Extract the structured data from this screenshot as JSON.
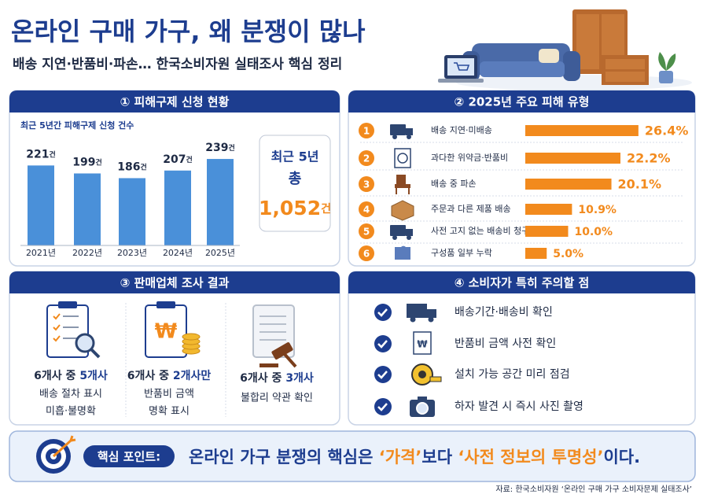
{
  "header": {
    "title": "온라인 구매 가구, 왜 분쟁이 많나",
    "subtitle": "배송 지연·반품비·파손… 한국소비자원 실태조사 핵심 정리"
  },
  "relief": {
    "title": "① 피해구제 신청 현황",
    "caption": "최근 5년간 피해구제 신청 건수",
    "categories": [
      "2021년",
      "2022년",
      "2023년",
      "2024년",
      "2025년"
    ],
    "values": [
      221,
      199,
      186,
      207,
      239
    ],
    "unit": "건",
    "total_lines": [
      "최근 5년",
      "총"
    ],
    "total": "1,052"
  },
  "types": {
    "title": "② 2025년 주요 피해 유형",
    "items": [
      {
        "rank": "1",
        "label": "배송 지연·미배송",
        "value": 26.4,
        "value_label": "26.4%"
      },
      {
        "rank": "2",
        "label": "과다한 위약금·반품비",
        "value": 22.2,
        "value_label": "22.2%"
      },
      {
        "rank": "3",
        "label": "배송 중 파손",
        "value": 20.1,
        "value_label": "20.1%"
      },
      {
        "rank": "4",
        "label": "주문과 다른 제품 배송",
        "value": 10.9,
        "value_label": "10.9%"
      },
      {
        "rank": "5",
        "label": "사전 고지 없는 배송비 청구",
        "value": 10.0,
        "value_label": "10.0%"
      },
      {
        "rank": "6",
        "label": "구성품 일부 누락",
        "value": 5.0,
        "value_label": "5.0%"
      }
    ]
  },
  "survey": {
    "title": "③ 판매업체 조사 결과",
    "items": [
      {
        "lead": "6개사 중",
        "highlight": "5개사",
        "lines": [
          "배송 절차 표시",
          "미흡·불명확"
        ]
      },
      {
        "lead": "6개사 중",
        "highlight": "2개사만",
        "lines": [
          "반품비 금액",
          "명확 표시"
        ]
      },
      {
        "lead": "6개사 중",
        "highlight": "3개사",
        "lines": [
          "불합리 약관 확인"
        ]
      }
    ]
  },
  "tips": {
    "title": "④ 소비자가 특히 주의할 점",
    "items": [
      "배송기간·배송비 확인",
      "반품비 금액 사전 확인",
      "설치 가능 공간 미리 점검",
      "하자 발견 시 즉시 사진 촬영"
    ]
  },
  "key": {
    "label": "핵심 포인트:",
    "parts": [
      "온라인 가구 분쟁의 핵심은 ",
      "‘가격’",
      "보다 ",
      "‘사전 정보의 투명성’",
      "이다."
    ]
  },
  "source": "자료: 한국소비자원 ‘온라인 구매 가구 소비자문제 실태조사’"
}
